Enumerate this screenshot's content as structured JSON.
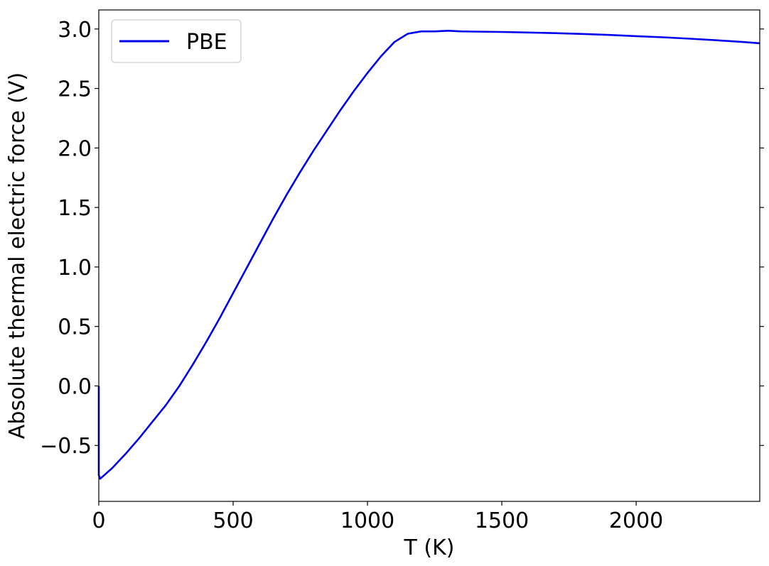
{
  "chart_data": {
    "type": "line",
    "xlabel": "T (K)",
    "ylabel": "Absolute thermal electric force (V)",
    "xlim": [
      0,
      2460
    ],
    "ylim": [
      -0.97,
      3.16
    ],
    "xticks": [
      0,
      500,
      1000,
      1500,
      2000
    ],
    "xtick_labels": [
      "0",
      "500",
      "1000",
      "1500",
      "2000"
    ],
    "yticks": [
      -0.5,
      0.0,
      0.5,
      1.0,
      1.5,
      2.0,
      2.5,
      3.0
    ],
    "ytick_labels": [
      "−0.5",
      "0.0",
      "0.5",
      "1.0",
      "1.5",
      "2.0",
      "2.5",
      "3.0"
    ],
    "grid": false,
    "legend_position": "top-left",
    "series": [
      {
        "name": "PBE",
        "color": "#0000ee",
        "x": [
          0,
          0,
          5,
          50,
          100,
          150,
          200,
          250,
          300,
          350,
          400,
          450,
          500,
          550,
          600,
          650,
          700,
          750,
          800,
          850,
          900,
          950,
          1000,
          1050,
          1100,
          1150,
          1200,
          1250,
          1300,
          1350,
          1400,
          1500,
          1600,
          1700,
          1800,
          1900,
          2000,
          2100,
          2200,
          2300,
          2400,
          2460
        ],
        "y": [
          0.0,
          -0.75,
          -0.78,
          -0.69,
          -0.57,
          -0.44,
          -0.3,
          -0.16,
          0.0,
          0.18,
          0.37,
          0.57,
          0.78,
          0.99,
          1.2,
          1.41,
          1.61,
          1.8,
          1.98,
          2.15,
          2.32,
          2.48,
          2.63,
          2.77,
          2.89,
          2.96,
          2.98,
          2.98,
          2.985,
          2.98,
          2.978,
          2.975,
          2.97,
          2.965,
          2.958,
          2.95,
          2.94,
          2.93,
          2.918,
          2.905,
          2.89,
          2.88
        ]
      }
    ]
  }
}
